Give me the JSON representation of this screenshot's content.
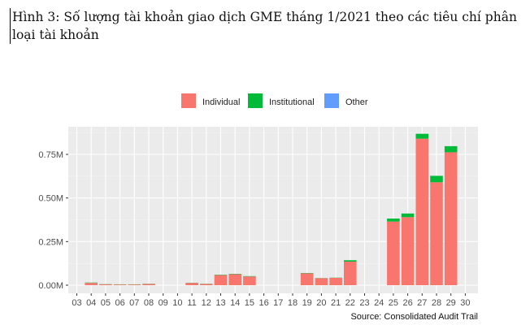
{
  "caption": "Hình 3: Số lượng tài khoản giao dịch GME tháng 1/2021 theo các tiêu chí phân loại tài khoản",
  "chart_data": {
    "type": "bar",
    "stacked": true,
    "categories": [
      "03",
      "04",
      "05",
      "06",
      "07",
      "08",
      "09",
      "10",
      "11",
      "12",
      "13",
      "14",
      "15",
      "16",
      "17",
      "18",
      "19",
      "20",
      "21",
      "22",
      "23",
      "24",
      "25",
      "26",
      "27",
      "28",
      "29",
      "30"
    ],
    "series": [
      {
        "name": "Individual",
        "color": "#F8766D",
        "values": [
          0,
          0.013,
          0.005,
          0.004,
          0.004,
          0.007,
          0,
          0,
          0.013,
          0.007,
          0.058,
          0.063,
          0.05,
          0,
          0,
          0,
          0.068,
          0.04,
          0.042,
          0.135,
          0,
          0,
          0.365,
          0.39,
          0.84,
          0.59,
          0.762,
          0
        ]
      },
      {
        "name": "Institutional",
        "color": "#00BA38",
        "values": [
          0,
          0.002,
          0.001,
          0.001,
          0.001,
          0.001,
          0,
          0,
          0.001,
          0.001,
          0.002,
          0.002,
          0.002,
          0,
          0,
          0,
          0.002,
          0.001,
          0.001,
          0.008,
          0,
          0,
          0.017,
          0.021,
          0.028,
          0.037,
          0.035,
          0
        ]
      },
      {
        "name": "Other",
        "color": "#619CFF",
        "values": [
          0,
          0,
          0,
          0,
          0,
          0,
          0,
          0,
          0,
          0,
          0,
          0,
          0,
          0,
          0,
          0,
          0,
          0,
          0,
          0,
          0,
          0,
          0,
          0,
          0,
          0,
          0,
          0
        ]
      }
    ],
    "y_ticks": [
      0,
      0.25,
      0.5,
      0.75
    ],
    "y_tick_labels": [
      "0.00M",
      "0.25M",
      "0.50M",
      "0.75M"
    ],
    "ylim": [
      0,
      0.9
    ],
    "legend_position": "top",
    "grid": true,
    "panel_background": "#EBEBEB",
    "source": "Source: Consolidated Audit Trail"
  }
}
